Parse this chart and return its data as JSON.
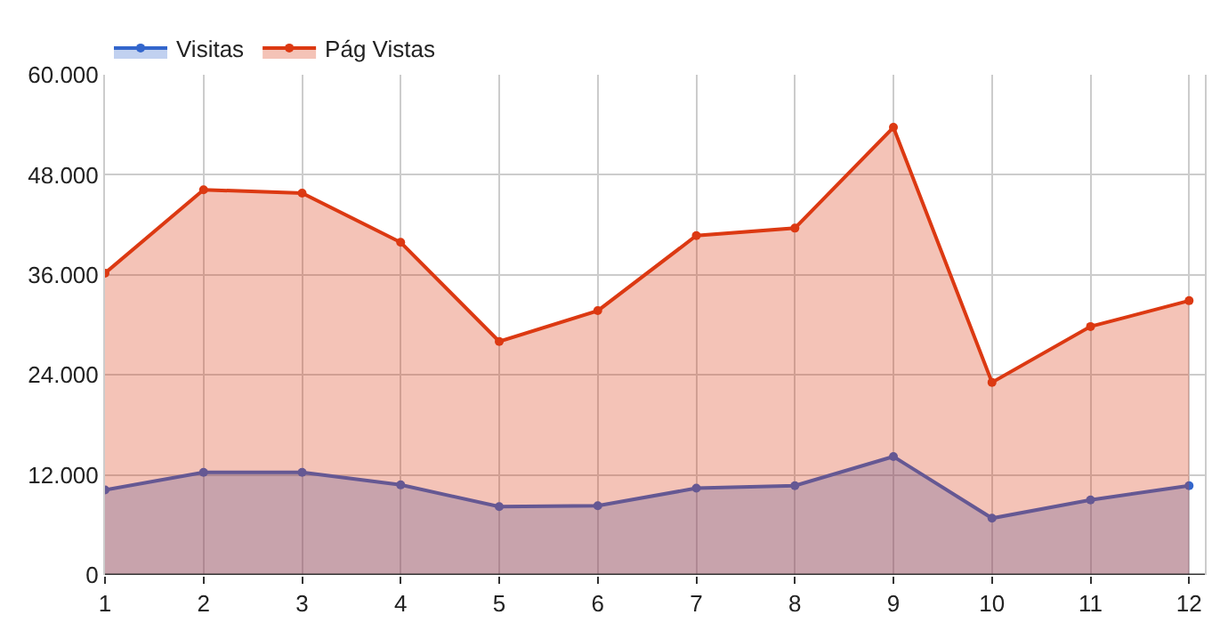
{
  "chart_data": {
    "type": "area",
    "x": [
      1,
      2,
      3,
      4,
      5,
      6,
      7,
      8,
      9,
      10,
      11,
      12
    ],
    "series": [
      {
        "name": "Visitas",
        "color": "#3366cc",
        "values": [
          10200,
          12300,
          12300,
          10800,
          8200,
          8300,
          10400,
          10700,
          14200,
          6800,
          9000,
          10700
        ]
      },
      {
        "name": "Pág Vistas",
        "color": "#dc3912",
        "values": [
          36200,
          46200,
          45800,
          39900,
          28000,
          31700,
          40700,
          41600,
          53700,
          23100,
          29800,
          32900
        ]
      }
    ],
    "xlim": [
      1,
      12.16
    ],
    "xticks": [
      1,
      2,
      3,
      4,
      5,
      6,
      7,
      8,
      9,
      10,
      11,
      12
    ],
    "ylim": [
      0,
      60000
    ],
    "yticks": [
      {
        "value": 0,
        "label": "0"
      },
      {
        "value": 12000,
        "label": "12.000"
      },
      {
        "value": 24000,
        "label": "24.000"
      },
      {
        "value": 36000,
        "label": "36.000"
      },
      {
        "value": 48000,
        "label": "48.000"
      },
      {
        "value": 60000,
        "label": "60.000"
      }
    ],
    "grid": true,
    "legend": "top left",
    "marker": "circle",
    "line_style": "solid"
  }
}
